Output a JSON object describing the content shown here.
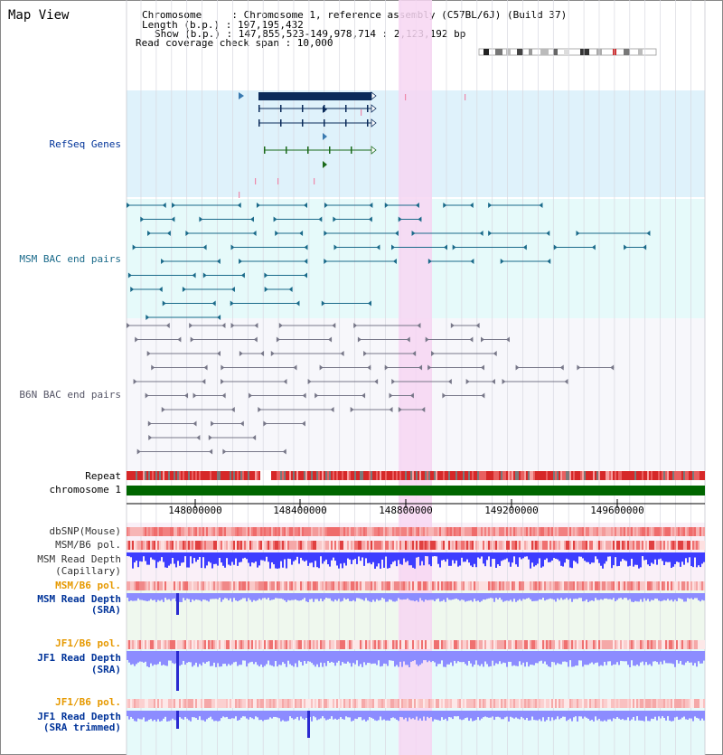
{
  "header": {
    "title": "Map View",
    "chromosome_line": "Chromosome     : Chromosome 1, reference assembly (C57BL/6J) (Build 37)",
    "length_line": "Length (b.p.) : 197,195,432",
    "show_line": "Show (b.p.) : 147,855,523-149,978,714 : 2,123,192 bp",
    "coverage_line": "Read coverage check span : 10,000"
  },
  "tracks": {
    "refseq": "RefSeq Genes",
    "msm_bac": "MSM BAC end pairs",
    "b6n_bac": "B6N BAC end pairs",
    "repeat": "Repeat",
    "chromosome": "chromosome 1",
    "dbsnp": "dbSNP(Mouse)",
    "msm_b6_pol_1": "MSM/B6 pol.",
    "msm_depth_cap_1": "MSM Read Depth",
    "msm_depth_cap_2": "(Capillary)",
    "msm_b6_pol_2": "MSM/B6 pol.",
    "msm_depth_sra_1": "MSM Read Depth",
    "msm_depth_sra_2": "(SRA)",
    "jf1_b6_pol_1": "JF1/B6 pol.",
    "jf1_depth_sra_1": "JF1 Read Depth",
    "jf1_depth_sra_2": "(SRA)",
    "jf1_b6_pol_2": "JF1/B6 pol.",
    "jf1_depth_trim_1": "JF1 Read Depth",
    "jf1_depth_trim_2": "(SRA trimmed)"
  },
  "axis": {
    "ticks": [
      "148000000",
      "148400000",
      "148800000",
      "149200000",
      "149600000"
    ]
  },
  "colors": {
    "refseq_bg": "#dff2fb",
    "bac_bg": "#e6fafa",
    "b6n_bg": "#f7f7fb",
    "highlight": "#f7d6f2",
    "chromosome_bar": "#006600",
    "msm_label": "#003399",
    "orange_label": "#e69900",
    "depth_blue": "#3d3dff",
    "depth_light_blue": "#8c8cff",
    "gene_navy": "#0a2a5a",
    "bac_teal": "#1a6a8a"
  }
}
